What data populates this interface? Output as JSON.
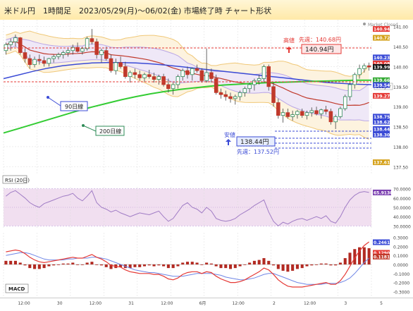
{
  "header": {
    "title": "米ドル円　1時間足　2023/05/29(月)～06/02(金) 市場終了時 チャート形状"
  },
  "colors": {
    "bg": "#ffffff",
    "grid": "#dcdcdc",
    "up": "#2e8b57",
    "down": "#c0392b",
    "bb_fill": "#efe8f7",
    "bb_outer": "#f0c878",
    "bb_inner": "#b9a6e6",
    "ma20": "#c0392b",
    "ma90": "#3b4bd6",
    "ma200": "#33cc33",
    "rsi_fill": "#f1dff0",
    "rsi_line": "#a07cc5",
    "macd_line": "#e53935",
    "signal_line": "#6f86e6"
  },
  "main": {
    "market_status": "Market Closed",
    "symbol_tag": "USDJPY",
    "high_label": "高値",
    "high_value": "140.94円",
    "prev_week_high": "先週：140.68円",
    "low_label": "安値",
    "low_value": "138.44円",
    "prev_week_low": "先週：137.52円",
    "ma90_label": "90日線",
    "ma200_label": "200日線",
    "price_ticks": [
      "141.00",
      "140.50",
      "140.00",
      "139.50",
      "139.00",
      "138.50",
      "138.00",
      "137.50"
    ],
    "price_tags": [
      {
        "text": "140.94",
        "value": 140.94,
        "color": "#e53935"
      },
      {
        "text": "140.72",
        "value": 140.72,
        "color": "#d4a017"
      },
      {
        "text": "140.23",
        "value": 140.23,
        "color": "#3b4bd6"
      },
      {
        "text": "140.08",
        "value": 140.08,
        "color": "#e53935"
      },
      {
        "text": "139.99",
        "value": 139.99,
        "color": "#111111"
      },
      {
        "text": "139.66",
        "value": 139.66,
        "color": "#33aa33"
      },
      {
        "text": "139.54",
        "value": 139.54,
        "color": "#3b4bd6"
      },
      {
        "text": "139.27",
        "value": 139.27,
        "color": "#e53935"
      },
      {
        "text": "138.75",
        "value": 138.75,
        "color": "#3b4bd6"
      },
      {
        "text": "138.62",
        "value": 138.62,
        "color": "#3b4bd6"
      },
      {
        "text": "138.44",
        "value": 138.44,
        "color": "#3b4bd6"
      },
      {
        "text": "138.30",
        "value": 138.3,
        "color": "#3b4bd6"
      },
      {
        "text": "137.61",
        "value": 137.61,
        "color": "#d4a017"
      }
    ]
  },
  "rsi": {
    "label": "RSI (20日)",
    "ticks": [
      "70.0000",
      "60.0000",
      "50.0000",
      "40.0000",
      "30.0000"
    ],
    "value_tag": "65.9130"
  },
  "macd": {
    "label": "MACD",
    "ticks": [
      "0.3000",
      "0.2000",
      "0.1000",
      "0.0000",
      "-0.1000",
      "-0.2000",
      "-0.3000"
    ],
    "value_tags": [
      {
        "text": "0.2461",
        "color": "#3b4bd6"
      },
      {
        "text": "0.1290",
        "color": "#e53935"
      },
      {
        "text": "0.1181",
        "color": "#c0392b"
      }
    ]
  },
  "x_axis": {
    "labels": [
      "12:00",
      "30",
      "12:00",
      "31",
      "12:00",
      "6月",
      "12:00",
      "2",
      "12:00",
      "3",
      "5"
    ]
  },
  "chart_data": {
    "type": "candlestick",
    "title": "米ドル円　1時間足　2023/05/29(月)～06/02(金) 市場終了時 チャート形状",
    "ylim": [
      137.4,
      141.1
    ],
    "candles": [
      [
        140.4,
        140.6,
        140.3,
        140.55
      ],
      [
        140.55,
        140.7,
        140.4,
        140.62
      ],
      [
        140.62,
        140.8,
        140.5,
        140.72
      ],
      [
        140.72,
        140.74,
        140.3,
        140.35
      ],
      [
        140.35,
        140.45,
        140.1,
        140.2
      ],
      [
        140.2,
        140.3,
        139.95,
        140.05
      ],
      [
        140.05,
        140.25,
        139.98,
        140.18
      ],
      [
        140.18,
        140.3,
        140.05,
        140.15
      ],
      [
        140.15,
        140.25,
        140.0,
        140.08
      ],
      [
        140.08,
        140.22,
        140.0,
        140.2
      ],
      [
        140.2,
        140.3,
        140.1,
        140.25
      ],
      [
        140.25,
        140.35,
        140.18,
        140.3
      ],
      [
        140.3,
        140.4,
        140.2,
        140.35
      ],
      [
        140.35,
        140.45,
        140.25,
        140.4
      ],
      [
        140.4,
        140.55,
        140.3,
        140.48
      ],
      [
        140.48,
        140.6,
        140.35,
        140.38
      ],
      [
        140.38,
        140.5,
        140.3,
        140.45
      ],
      [
        140.45,
        140.75,
        140.4,
        140.7
      ],
      [
        140.7,
        140.94,
        140.55,
        140.62
      ],
      [
        140.62,
        140.7,
        140.2,
        140.3
      ],
      [
        140.3,
        140.45,
        140.1,
        140.4
      ],
      [
        140.4,
        140.5,
        140.15,
        140.2
      ],
      [
        140.2,
        140.3,
        139.85,
        139.9
      ],
      [
        139.9,
        140.2,
        139.8,
        140.1
      ],
      [
        140.1,
        140.25,
        139.95,
        140.0
      ],
      [
        140.0,
        140.12,
        139.7,
        139.75
      ],
      [
        139.75,
        139.9,
        139.6,
        139.85
      ],
      [
        139.85,
        139.95,
        139.7,
        139.8
      ],
      [
        139.8,
        139.9,
        139.65,
        139.72
      ],
      [
        139.72,
        139.85,
        139.62,
        139.8
      ],
      [
        139.8,
        139.92,
        139.7,
        139.75
      ],
      [
        139.75,
        139.85,
        139.6,
        139.68
      ],
      [
        139.68,
        139.8,
        139.55,
        139.75
      ],
      [
        139.75,
        139.82,
        139.5,
        139.55
      ],
      [
        139.55,
        139.7,
        139.35,
        139.45
      ],
      [
        139.45,
        139.6,
        139.3,
        139.55
      ],
      [
        139.55,
        139.8,
        139.45,
        139.75
      ],
      [
        139.75,
        139.95,
        139.65,
        139.9
      ],
      [
        139.9,
        140.0,
        139.7,
        139.8
      ],
      [
        139.8,
        139.98,
        139.65,
        139.95
      ],
      [
        139.95,
        140.05,
        139.85,
        139.9
      ],
      [
        139.9,
        139.96,
        139.6,
        139.65
      ],
      [
        139.65,
        140.45,
        139.6,
        139.85
      ],
      [
        139.85,
        139.95,
        139.6,
        139.7
      ],
      [
        139.7,
        139.8,
        139.3,
        139.35
      ],
      [
        139.35,
        139.45,
        139.2,
        139.3
      ],
      [
        139.3,
        139.4,
        139.15,
        139.25
      ],
      [
        139.25,
        139.35,
        139.1,
        139.2
      ],
      [
        139.2,
        139.3,
        139.05,
        139.25
      ],
      [
        139.25,
        139.4,
        139.15,
        139.35
      ],
      [
        139.35,
        139.5,
        139.25,
        139.45
      ],
      [
        139.45,
        139.6,
        139.35,
        139.55
      ],
      [
        139.55,
        139.7,
        139.4,
        139.65
      ],
      [
        139.65,
        139.8,
        139.55,
        139.7
      ],
      [
        139.7,
        140.05,
        139.6,
        140.0
      ],
      [
        140.0,
        140.05,
        139.4,
        139.5
      ],
      [
        139.5,
        139.6,
        139.0,
        139.1
      ],
      [
        139.1,
        139.2,
        138.7,
        138.78
      ],
      [
        138.78,
        138.95,
        138.6,
        138.85
      ],
      [
        138.85,
        138.95,
        138.7,
        138.75
      ],
      [
        138.75,
        138.9,
        138.65,
        138.8
      ],
      [
        138.8,
        138.92,
        138.7,
        138.88
      ],
      [
        138.88,
        138.95,
        138.72,
        138.78
      ],
      [
        138.78,
        138.9,
        138.68,
        138.85
      ],
      [
        138.85,
        138.98,
        138.75,
        138.9
      ],
      [
        138.9,
        139.0,
        138.78,
        138.82
      ],
      [
        138.82,
        138.95,
        138.7,
        138.92
      ],
      [
        138.92,
        139.02,
        138.8,
        138.88
      ],
      [
        138.88,
        138.95,
        138.55,
        138.62
      ],
      [
        138.62,
        138.8,
        138.44,
        138.75
      ],
      [
        138.75,
        139.0,
        138.7,
        138.95
      ],
      [
        138.95,
        139.3,
        138.9,
        139.25
      ],
      [
        139.25,
        139.6,
        139.15,
        139.55
      ],
      [
        139.55,
        139.85,
        139.45,
        139.8
      ],
      [
        139.8,
        140.05,
        139.7,
        139.95
      ],
      [
        139.95,
        140.08,
        139.85,
        140.02
      ],
      [
        140.02,
        140.1,
        139.9,
        139.99
      ]
    ],
    "series": [
      {
        "name": "90日線",
        "values": [
          139.7,
          139.79,
          139.88,
          139.96,
          140.02,
          140.06,
          140.09,
          140.1,
          140.1,
          140.09,
          140.07,
          140.04,
          140.0,
          139.96,
          139.92,
          139.88,
          139.84,
          139.8,
          139.76,
          139.72,
          139.68,
          139.64,
          139.6,
          139.58,
          139.56,
          139.55
        ]
      },
      {
        "name": "200日線",
        "values": [
          138.34,
          138.45,
          138.56,
          138.67,
          138.78,
          138.89,
          138.99,
          139.08,
          139.17,
          139.25,
          139.32,
          139.38,
          139.43,
          139.47,
          139.51,
          139.54,
          139.56,
          139.58,
          139.6,
          139.61,
          139.62,
          139.63,
          139.64,
          139.65,
          139.66,
          139.66
        ]
      }
    ],
    "rsi_values": [
      62,
      66,
      68,
      64,
      60,
      55,
      52,
      50,
      54,
      56,
      58,
      60,
      62,
      63,
      65,
      60,
      57,
      62,
      68,
      55,
      50,
      48,
      45,
      47,
      44,
      42,
      40,
      42,
      44,
      43,
      42,
      44,
      46,
      40,
      35,
      38,
      45,
      52,
      55,
      50,
      48,
      44,
      50,
      46,
      38,
      36,
      35,
      36,
      38,
      42,
      45,
      48,
      52,
      55,
      58,
      45,
      35,
      30,
      34,
      32,
      35,
      37,
      38,
      36,
      38,
      40,
      38,
      41,
      35,
      33,
      40,
      50,
      58,
      63,
      66,
      67,
      66
    ],
    "macd_values": [
      0.14,
      0.15,
      0.16,
      0.15,
      0.12,
      0.08,
      0.05,
      0.03,
      0.02,
      0.03,
      0.04,
      0.05,
      0.06,
      0.07,
      0.08,
      0.07,
      0.07,
      0.09,
      0.11,
      0.08,
      0.06,
      0.03,
      -0.01,
      -0.02,
      -0.03,
      -0.06,
      -0.08,
      -0.09,
      -0.1,
      -0.1,
      -0.1,
      -0.11,
      -0.11,
      -0.13,
      -0.16,
      -0.17,
      -0.15,
      -0.11,
      -0.09,
      -0.08,
      -0.08,
      -0.1,
      -0.08,
      -0.09,
      -0.13,
      -0.16,
      -0.18,
      -0.2,
      -0.2,
      -0.19,
      -0.17,
      -0.14,
      -0.11,
      -0.08,
      -0.04,
      -0.06,
      -0.11,
      -0.17,
      -0.21,
      -0.24,
      -0.25,
      -0.25,
      -0.25,
      -0.24,
      -0.23,
      -0.22,
      -0.21,
      -0.2,
      -0.22,
      -0.22,
      -0.18,
      -0.11,
      -0.02,
      0.07,
      0.15,
      0.21,
      0.25
    ],
    "signal_values": [
      0.1,
      0.11,
      0.12,
      0.13,
      0.13,
      0.12,
      0.1,
      0.08,
      0.06,
      0.05,
      0.05,
      0.05,
      0.05,
      0.06,
      0.06,
      0.07,
      0.07,
      0.07,
      0.08,
      0.08,
      0.07,
      0.06,
      0.04,
      0.02,
      0.0,
      -0.02,
      -0.04,
      -0.06,
      -0.07,
      -0.08,
      -0.09,
      -0.09,
      -0.1,
      -0.11,
      -0.12,
      -0.13,
      -0.13,
      -0.13,
      -0.12,
      -0.11,
      -0.1,
      -0.1,
      -0.1,
      -0.1,
      -0.11,
      -0.12,
      -0.14,
      -0.15,
      -0.16,
      -0.17,
      -0.17,
      -0.16,
      -0.15,
      -0.13,
      -0.11,
      -0.1,
      -0.1,
      -0.12,
      -0.14,
      -0.16,
      -0.18,
      -0.2,
      -0.21,
      -0.22,
      -0.22,
      -0.22,
      -0.22,
      -0.21,
      -0.21,
      -0.21,
      -0.2,
      -0.18,
      -0.15,
      -0.1,
      -0.04,
      0.02,
      0.07
    ],
    "histogram_values": [
      0.04,
      0.04,
      0.04,
      0.02,
      -0.01,
      -0.04,
      -0.05,
      -0.05,
      -0.04,
      -0.02,
      -0.01,
      0.0,
      0.01,
      0.01,
      0.02,
      0.0,
      0.0,
      0.02,
      0.03,
      0.0,
      -0.01,
      -0.03,
      -0.05,
      -0.04,
      -0.03,
      -0.04,
      -0.04,
      -0.03,
      -0.03,
      -0.02,
      -0.01,
      -0.02,
      -0.01,
      -0.02,
      -0.04,
      -0.04,
      -0.02,
      0.02,
      0.03,
      0.03,
      0.02,
      0.0,
      0.02,
      0.01,
      -0.02,
      -0.04,
      -0.04,
      -0.05,
      -0.04,
      -0.02,
      0.0,
      0.02,
      0.04,
      0.05,
      0.07,
      0.04,
      -0.01,
      -0.05,
      -0.07,
      -0.08,
      -0.07,
      -0.05,
      -0.04,
      -0.02,
      -0.01,
      0.0,
      0.01,
      0.01,
      -0.01,
      -0.01,
      0.02,
      0.07,
      0.13,
      0.17,
      0.19,
      0.19,
      0.18
    ]
  }
}
